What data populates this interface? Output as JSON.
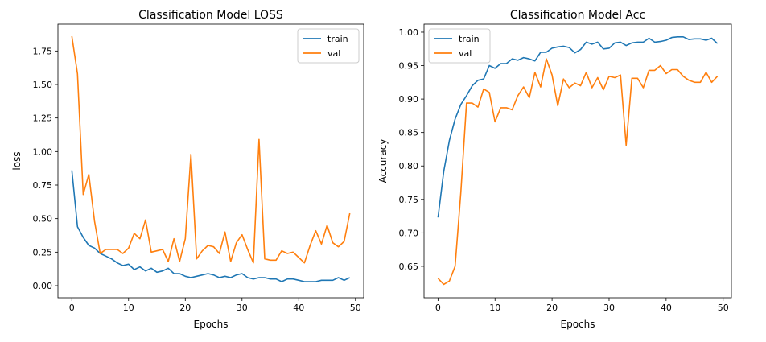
{
  "chart_data": [
    {
      "type": "line",
      "title": "Classification Model LOSS",
      "xlabel": "Epochs",
      "ylabel": "loss",
      "xlim": [
        -2.45,
        51.45
      ],
      "ylim": [
        -0.09,
        1.95
      ],
      "xticks": [
        0,
        10,
        20,
        30,
        40,
        50
      ],
      "yticks": [
        0.0,
        0.25,
        0.5,
        0.75,
        1.0,
        1.25,
        1.5,
        1.75
      ],
      "ytick_labels": [
        "0.00",
        "0.25",
        "0.50",
        "0.75",
        "1.00",
        "1.25",
        "1.50",
        "1.75"
      ],
      "legend": "top-right",
      "x": [
        0,
        1,
        2,
        3,
        4,
        5,
        6,
        7,
        8,
        9,
        10,
        11,
        12,
        13,
        14,
        15,
        16,
        17,
        18,
        19,
        20,
        21,
        22,
        23,
        24,
        25,
        26,
        27,
        28,
        29,
        30,
        31,
        32,
        33,
        34,
        35,
        36,
        37,
        38,
        39,
        40,
        41,
        42,
        43,
        44,
        45,
        46,
        47,
        48,
        49
      ],
      "series": [
        {
          "name": "train",
          "color": "#1f77b4",
          "values": [
            0.86,
            0.44,
            0.36,
            0.3,
            0.28,
            0.24,
            0.22,
            0.2,
            0.17,
            0.15,
            0.16,
            0.12,
            0.14,
            0.11,
            0.13,
            0.1,
            0.11,
            0.13,
            0.09,
            0.09,
            0.07,
            0.06,
            0.07,
            0.08,
            0.09,
            0.08,
            0.06,
            0.07,
            0.06,
            0.08,
            0.09,
            0.06,
            0.05,
            0.06,
            0.06,
            0.05,
            0.05,
            0.03,
            0.05,
            0.05,
            0.04,
            0.03,
            0.03,
            0.03,
            0.04,
            0.04,
            0.04,
            0.06,
            0.04,
            0.06
          ]
        },
        {
          "name": "val",
          "color": "#ff7f0e",
          "values": [
            1.86,
            1.58,
            0.68,
            0.83,
            0.48,
            0.24,
            0.27,
            0.27,
            0.27,
            0.24,
            0.28,
            0.39,
            0.35,
            0.49,
            0.25,
            0.26,
            0.27,
            0.18,
            0.35,
            0.18,
            0.35,
            0.98,
            0.2,
            0.26,
            0.3,
            0.29,
            0.24,
            0.4,
            0.18,
            0.32,
            0.38,
            0.27,
            0.17,
            1.09,
            0.2,
            0.19,
            0.19,
            0.26,
            0.24,
            0.25,
            0.21,
            0.17,
            0.3,
            0.41,
            0.31,
            0.45,
            0.32,
            0.29,
            0.33,
            0.54
          ]
        }
      ]
    },
    {
      "type": "line",
      "title": "Classification Model Acc",
      "xlabel": "Epochs",
      "ylabel": "Accuracy",
      "xlim": [
        -2.45,
        51.45
      ],
      "ylim": [
        0.603,
        1.012
      ],
      "xticks": [
        0,
        10,
        20,
        30,
        40,
        50
      ],
      "yticks": [
        0.65,
        0.7,
        0.75,
        0.8,
        0.85,
        0.9,
        0.95,
        1.0
      ],
      "ytick_labels": [
        "0.65",
        "0.70",
        "0.75",
        "0.80",
        "0.85",
        "0.90",
        "0.95",
        "1.00"
      ],
      "legend": "top-left",
      "x": [
        0,
        1,
        2,
        3,
        4,
        5,
        6,
        7,
        8,
        9,
        10,
        11,
        12,
        13,
        14,
        15,
        16,
        17,
        18,
        19,
        20,
        21,
        22,
        23,
        24,
        25,
        26,
        27,
        28,
        29,
        30,
        31,
        32,
        33,
        34,
        35,
        36,
        37,
        38,
        39,
        40,
        41,
        42,
        43,
        44,
        45,
        46,
        47,
        48,
        49
      ],
      "series": [
        {
          "name": "train",
          "color": "#1f77b4",
          "values": [
            0.723,
            0.792,
            0.838,
            0.87,
            0.892,
            0.905,
            0.92,
            0.928,
            0.93,
            0.95,
            0.946,
            0.953,
            0.953,
            0.96,
            0.958,
            0.962,
            0.96,
            0.957,
            0.97,
            0.97,
            0.976,
            0.978,
            0.979,
            0.977,
            0.969,
            0.974,
            0.985,
            0.982,
            0.985,
            0.975,
            0.976,
            0.984,
            0.985,
            0.98,
            0.984,
            0.985,
            0.985,
            0.991,
            0.985,
            0.986,
            0.988,
            0.992,
            0.993,
            0.993,
            0.989,
            0.99,
            0.99,
            0.988,
            0.991,
            0.983
          ]
        },
        {
          "name": "val",
          "color": "#ff7f0e",
          "values": [
            0.632,
            0.623,
            0.628,
            0.65,
            0.76,
            0.894,
            0.894,
            0.888,
            0.915,
            0.91,
            0.866,
            0.887,
            0.887,
            0.884,
            0.905,
            0.918,
            0.902,
            0.94,
            0.918,
            0.96,
            0.936,
            0.89,
            0.93,
            0.917,
            0.924,
            0.92,
            0.94,
            0.917,
            0.932,
            0.914,
            0.934,
            0.932,
            0.936,
            0.831,
            0.931,
            0.931,
            0.917,
            0.943,
            0.943,
            0.95,
            0.938,
            0.944,
            0.944,
            0.934,
            0.928,
            0.925,
            0.925,
            0.94,
            0.925,
            0.934
          ]
        }
      ]
    }
  ]
}
